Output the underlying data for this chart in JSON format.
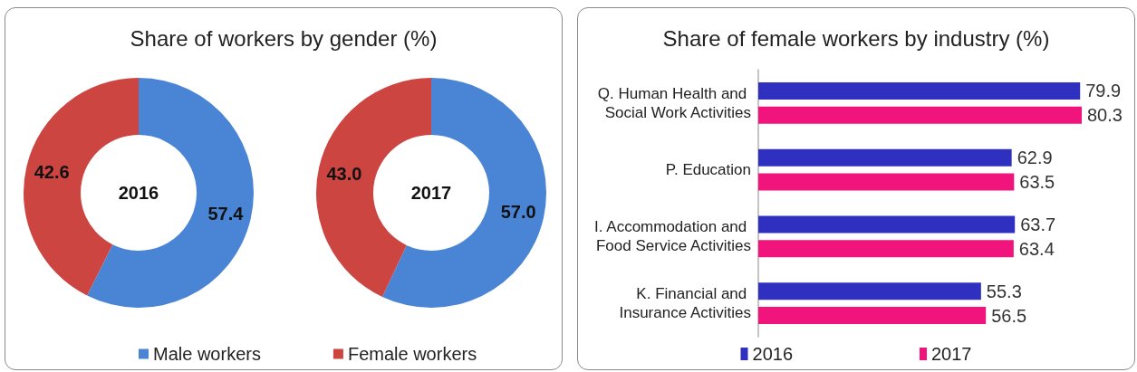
{
  "chart_data": [
    {
      "type": "donut",
      "title": "Share of workers by gender (%)",
      "categories": [
        "Male workers",
        "Female workers"
      ],
      "colors": [
        "#4a84d4",
        "#cc4541"
      ],
      "series": [
        {
          "name": "2016",
          "values": [
            57.4,
            42.6
          ],
          "value_labels": [
            "57.4",
            "42.6"
          ]
        },
        {
          "name": "2017",
          "values": [
            57.0,
            43.0
          ],
          "value_labels": [
            "57.0",
            "43.0"
          ]
        }
      ],
      "legend": "bottom"
    },
    {
      "type": "bar",
      "orientation": "horizontal",
      "title": "Share of female workers by industry (%)",
      "categories": [
        "Q. Human Health and Social Work Activities",
        "P. Education",
        "I. Accommodation and Food Service Activities",
        "K. Financial and Insurance Activities"
      ],
      "series": [
        {
          "name": "2016",
          "color": "#3030c0",
          "values": [
            79.9,
            62.9,
            63.7,
            55.3
          ]
        },
        {
          "name": "2017",
          "color": "#f0147c",
          "values": [
            80.3,
            63.5,
            63.4,
            56.5
          ]
        }
      ],
      "data_labels": true,
      "tick_labels": "y",
      "legend": "bottom"
    }
  ]
}
